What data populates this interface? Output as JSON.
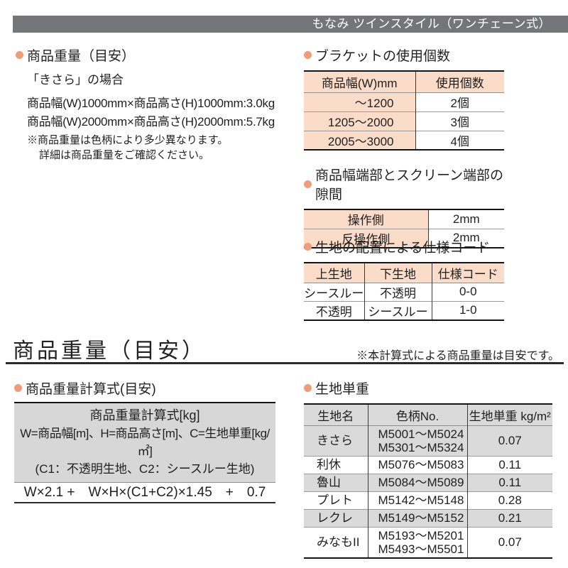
{
  "banner": {
    "title": "もなみ ツインスタイル（ワンチェーン式）"
  },
  "weight_info": {
    "heading": "商品重量（目安）",
    "case_label": "「きさら」の場合",
    "lines": [
      "商品幅(W)1000mm×商品高さ(H)1000mm:3.0kg",
      "商品幅(W)2000mm×商品高さ(H)2000mm:5.7kg"
    ],
    "note1": "※商品重量は色柄により多少異なります。",
    "note2": "詳細は商品重量をご確認ください。"
  },
  "bracket": {
    "heading": "ブラケットの使用個数",
    "columns": [
      "商品幅(W)mm",
      "使用個数"
    ],
    "rows": [
      {
        "width": "〜1200",
        "count": "2個"
      },
      {
        "width": "1205〜2000",
        "count": "3個"
      },
      {
        "width": "2005〜3000",
        "count": "4個"
      }
    ]
  },
  "gap": {
    "heading": "商品幅端部とスクリーン端部の隙間",
    "rows": [
      {
        "label": "操作側",
        "value": "2mm"
      },
      {
        "label": "反操作側",
        "value": "2mm"
      }
    ]
  },
  "spec_code": {
    "heading": "生地の配置による仕様コード",
    "columns": [
      "上生地",
      "下生地",
      "仕様コード"
    ],
    "rows": [
      {
        "top": "シースルー",
        "bottom": "不透明",
        "code": "0-0"
      },
      {
        "top": "不透明",
        "bottom": "シースルー",
        "code": "1-0"
      }
    ]
  },
  "weight_section": {
    "title": "商品重量（目安）",
    "note": "※本計算式による商品重量は目安です。"
  },
  "formula": {
    "heading": "商品重量計算式(目安)",
    "box_title": "商品重量計算式[kg]",
    "box_line2": "W=商品幅[m]、H=商品高さ[m]、C=生地単重[kg/㎡]",
    "box_line3": "(C1：不透明生地、C2：シースルー生地)",
    "expression": "W×2.1 +　W×H×(C1+C2)×1.45　+　0.7"
  },
  "fabric_weight": {
    "heading": "生地単重",
    "columns": [
      "生地名",
      "色柄No.",
      "生地単重 kg/m²"
    ],
    "rows": [
      {
        "name": "きさら",
        "colors": "M5001〜M5024\nM5301〜M5324",
        "weight": "0.07"
      },
      {
        "name": "利休",
        "colors": "M5076〜M5083",
        "weight": "0.11"
      },
      {
        "name": "魯山",
        "colors": "M5084〜M5089",
        "weight": "0.11"
      },
      {
        "name": "プレト",
        "colors": "M5142〜M5148",
        "weight": "0.28"
      },
      {
        "name": "レクレ",
        "colors": "M5149〜M5152",
        "weight": "0.21"
      },
      {
        "name": "みなもII",
        "colors": "M5193〜M5201\nM5493〜M5501",
        "weight": "0.07"
      }
    ]
  },
  "colors": {
    "accent_bullet": "#f09c7a",
    "peach_fill": "#fadcc8",
    "gray_fill": "#d7d7d7",
    "banner_bg": "#747579"
  }
}
